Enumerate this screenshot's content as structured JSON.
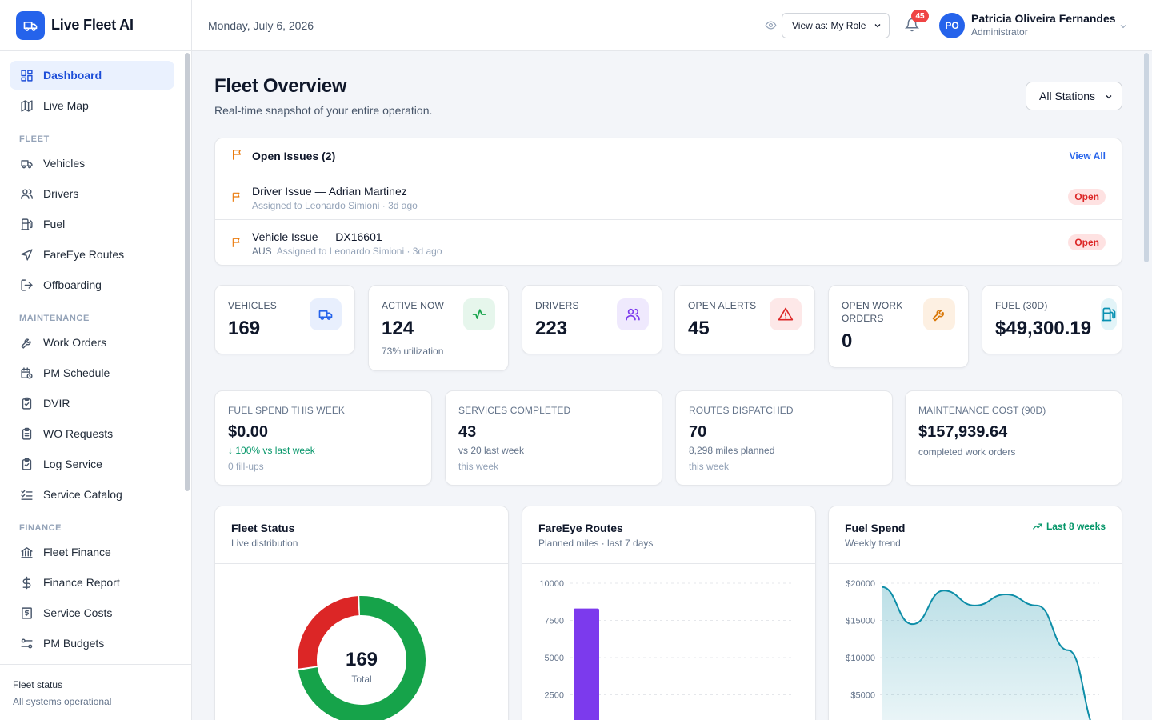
{
  "app": {
    "name": "Live Fleet AI"
  },
  "sidebar": {
    "top_items": [
      {
        "label": "Dashboard",
        "icon": "dashboard-icon",
        "active": true
      },
      {
        "label": "Live Map",
        "icon": "map-icon"
      }
    ],
    "sections": [
      {
        "title": "FLEET",
        "items": [
          {
            "label": "Vehicles",
            "icon": "truck-icon"
          },
          {
            "label": "Drivers",
            "icon": "users-icon"
          },
          {
            "label": "Fuel",
            "icon": "fuel-icon"
          },
          {
            "label": "FareEye Routes",
            "icon": "navigation-icon"
          },
          {
            "label": "Offboarding",
            "icon": "logout-icon"
          }
        ]
      },
      {
        "title": "MAINTENANCE",
        "items": [
          {
            "label": "Work Orders",
            "icon": "wrench-icon"
          },
          {
            "label": "PM Schedule",
            "icon": "calendar-clock-icon"
          },
          {
            "label": "DVIR",
            "icon": "clipboard-check-icon"
          },
          {
            "label": "WO Requests",
            "icon": "clipboard-list-icon"
          },
          {
            "label": "Log Service",
            "icon": "clipboard-check-icon"
          },
          {
            "label": "Service Catalog",
            "icon": "list-checks-icon"
          }
        ]
      },
      {
        "title": "FINANCE",
        "items": [
          {
            "label": "Fleet Finance",
            "icon": "bank-icon"
          },
          {
            "label": "Finance Report",
            "icon": "dollar-icon"
          },
          {
            "label": "Service Costs",
            "icon": "receipt-icon"
          },
          {
            "label": "PM Budgets",
            "icon": "sliders-icon"
          }
        ]
      }
    ],
    "footer": {
      "title": "Fleet status",
      "status": "All systems operational"
    }
  },
  "topbar": {
    "date": "Monday, July 6, 2026",
    "view_as": "View as: My Role",
    "notifications": "45",
    "user": {
      "initials": "PO",
      "name": "Patricia Oliveira Fernandes",
      "role": "Administrator"
    }
  },
  "page": {
    "title": "Fleet Overview",
    "subtitle": "Real-time snapshot of your entire operation.",
    "station_filter": "All Stations"
  },
  "issues": {
    "title": "Open Issues (2)",
    "view_all": "View All",
    "items": [
      {
        "title": "Driver Issue — Adrian Martinez",
        "tag": "",
        "meta": "Assigned to Leonardo Simioni · 3d ago",
        "status": "Open"
      },
      {
        "title": "Vehicle Issue — DX16601",
        "tag": "AUS",
        "meta": "Assigned to Leonardo Simioni · 3d ago",
        "status": "Open"
      }
    ]
  },
  "kpis": [
    {
      "label": "VEHICLES",
      "value": "169",
      "sub": "",
      "icon": "truck-icon",
      "color": "#2563eb",
      "bg": "#e8effd"
    },
    {
      "label": "ACTIVE NOW",
      "value": "124",
      "sub": "73% utilization",
      "icon": "activity-icon",
      "color": "#16a34a",
      "bg": "#e6f6ec"
    },
    {
      "label": "DRIVERS",
      "value": "223",
      "sub": "",
      "icon": "users-icon",
      "color": "#7c3aed",
      "bg": "#efe9fd"
    },
    {
      "label": "OPEN ALERTS",
      "value": "45",
      "sub": "",
      "icon": "alert-triangle-icon",
      "color": "#dc2626",
      "bg": "#fde8e8"
    },
    {
      "label": "OPEN WORK ORDERS",
      "value": "0",
      "sub": "",
      "icon": "wrench-icon",
      "color": "#d97706",
      "bg": "#fdf0e2"
    },
    {
      "label": "FUEL (30D)",
      "value": "$49,300.19",
      "sub": "",
      "icon": "fuel-icon",
      "color": "#0891b2",
      "bg": "#e2f4f8"
    }
  ],
  "stats": [
    {
      "label": "FUEL SPEND THIS WEEK",
      "value": "$0.00",
      "line1": "100% vs last week",
      "line2": "0 fill-ups"
    },
    {
      "label": "SERVICES COMPLETED",
      "value": "43",
      "line1": "vs 20 last week",
      "line2": "this week"
    },
    {
      "label": "ROUTES DISPATCHED",
      "value": "70",
      "line1": "8,298 miles planned",
      "line2": "this week"
    },
    {
      "label": "MAINTENANCE COST (90D)",
      "value": "$157,939.64",
      "line1": "completed work orders",
      "line2": ""
    }
  ],
  "charts": {
    "fleet_status": {
      "title": "Fleet Status",
      "subtitle": "Live distribution"
    },
    "fareeye": {
      "title": "FareEye Routes",
      "subtitle": "Planned miles · last 7 days"
    },
    "fuel_spend": {
      "title": "Fuel Spend",
      "subtitle": "Weekly trend",
      "trend_label": "Last 8 weeks"
    }
  },
  "chart_data": [
    {
      "type": "pie",
      "title": "Fleet Status",
      "center_value": "169",
      "center_label": "Total",
      "total": 169,
      "slices": [
        {
          "value": 124,
          "color": "#16a34a"
        },
        {
          "value": 45,
          "color": "#dc2626"
        }
      ]
    },
    {
      "type": "bar",
      "title": "FareEye Routes",
      "yticks": [
        "10000",
        "7500",
        "5000",
        "2500"
      ],
      "ylim": [
        0,
        10000
      ],
      "values": [
        8298
      ],
      "color": "#7c3aed"
    },
    {
      "type": "area",
      "title": "Fuel Spend",
      "yticks": [
        "$20000",
        "$15000",
        "$10000",
        "$5000"
      ],
      "ylim": [
        0,
        20000
      ],
      "values": [
        19500,
        14500,
        19000,
        17000,
        18500,
        17000,
        11000,
        0
      ],
      "color": "#0e8ea8"
    }
  ]
}
